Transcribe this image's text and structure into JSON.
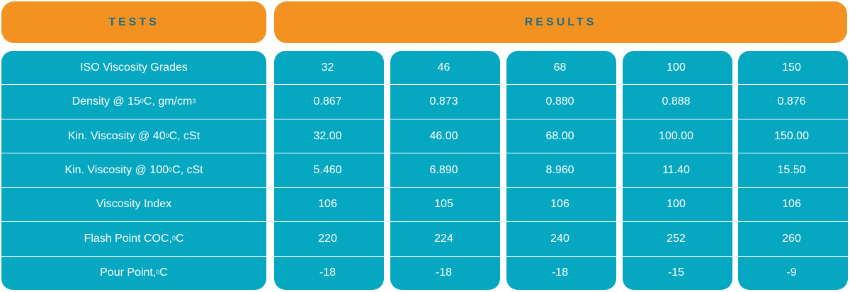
{
  "headers": {
    "tests": "TESTS",
    "results": "RESULTS"
  },
  "tests": [
    {
      "text": "ISO Viscosity Grades",
      "sup": "",
      "tail": ""
    },
    {
      "text": "Density @ 15 ",
      "sup": "0",
      "tail": "C, gm/cm",
      "sup2": "3"
    },
    {
      "text": "Kin. Viscosity @ 40 ",
      "sup": "0",
      "tail": "C, cSt"
    },
    {
      "text": "Kin. Viscosity @ 100 ",
      "sup": "0",
      "tail": "C, cSt"
    },
    {
      "text": "Viscosity Index",
      "sup": "",
      "tail": ""
    },
    {
      "text": "Flash Point COC, ",
      "sup": "0",
      "tail": "C"
    },
    {
      "text": "Pour Point, ",
      "sup": "0",
      "tail": "C"
    }
  ],
  "results": [
    [
      "32",
      "0.867",
      "32.00",
      "5.460",
      "106",
      "220",
      "-18"
    ],
    [
      "46",
      "0.873",
      "46.00",
      "6.890",
      "105",
      "224",
      "-18"
    ],
    [
      "68",
      "0.880",
      "68.00",
      "8.960",
      "106",
      "240",
      "-18"
    ],
    [
      "100",
      "0.888",
      "100.00",
      "11.40",
      "100",
      "252",
      "-15"
    ],
    [
      "150",
      "0.876",
      "150.00",
      "15.50",
      "106",
      "260",
      "-9"
    ]
  ]
}
